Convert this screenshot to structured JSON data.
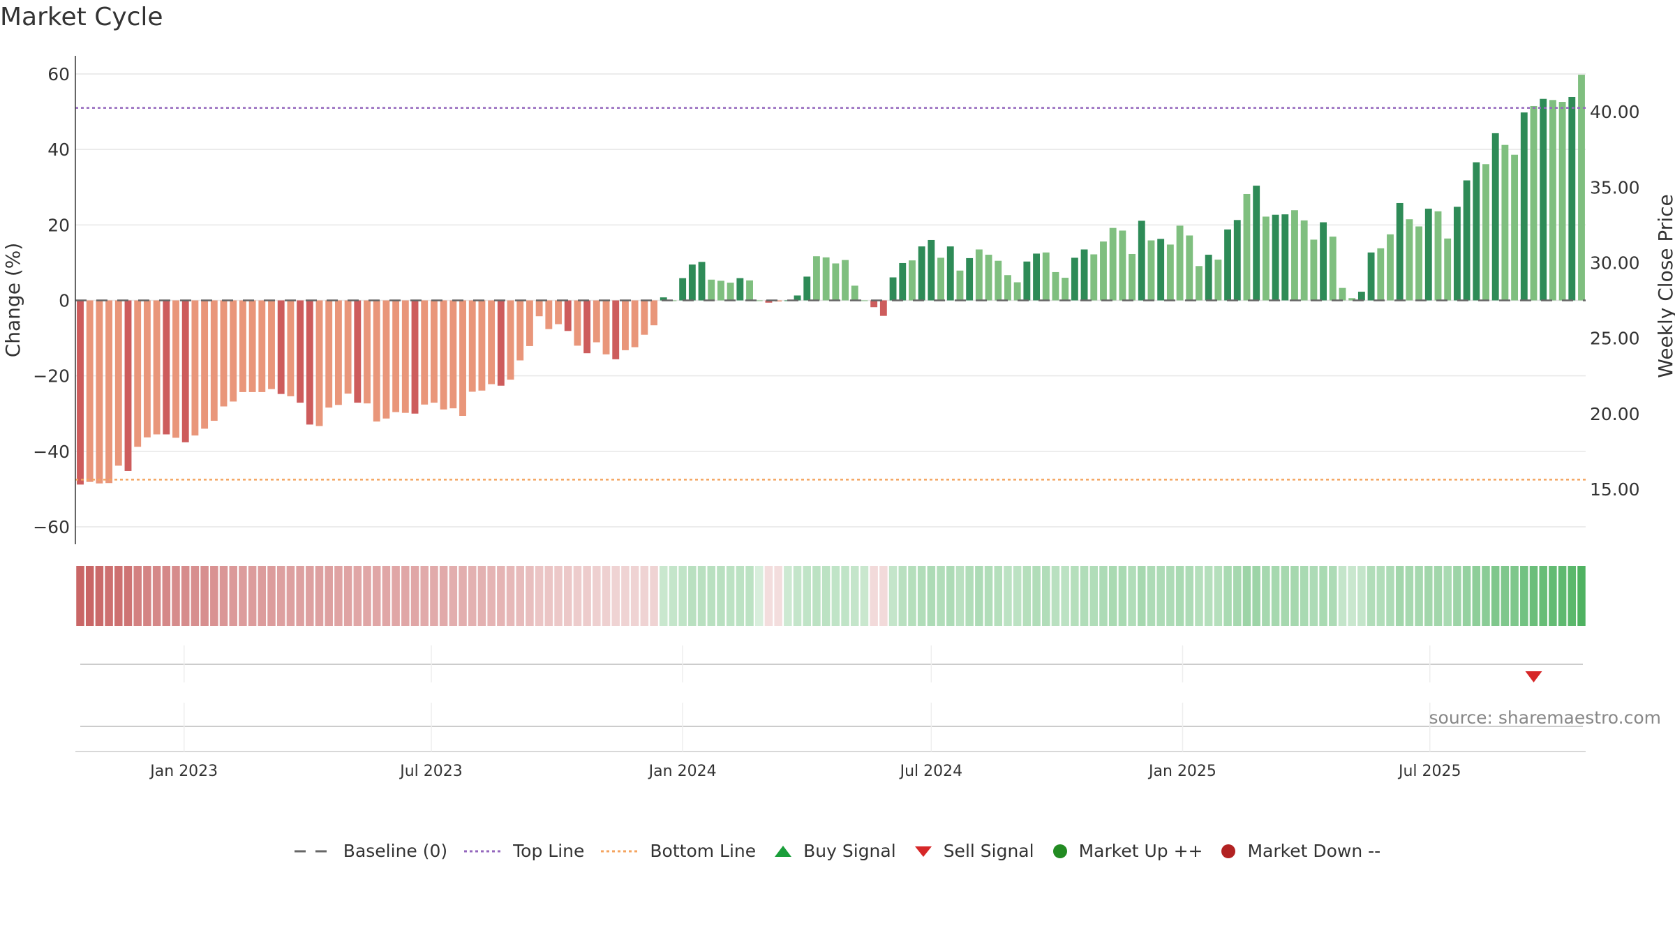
{
  "title": "Market Cycle",
  "source_text": "source: sharemaestro.com",
  "colors": {
    "up_strong": "#2e8b57",
    "up_light": "#7fbf7f",
    "down_strong": "#cd5c5c",
    "down_light": "#e9967a",
    "top_line": "#9467bd",
    "bottom_line": "#f4a460",
    "baseline": "#666666",
    "buy": "#1a9e3a",
    "sell": "#d62728",
    "market_up": "#228b22",
    "market_down": "#b22222"
  },
  "legend": [
    {
      "label": "Baseline (0)",
      "symbol": "dash"
    },
    {
      "label": "Top Line",
      "symbol": "dot-purple"
    },
    {
      "label": "Bottom Line",
      "symbol": "dot-orange"
    },
    {
      "label": "Buy Signal",
      "symbol": "triangle-up"
    },
    {
      "label": "Sell Signal",
      "symbol": "triangle-down"
    },
    {
      "label": "Market Up ++",
      "symbol": "circle-green"
    },
    {
      "label": "Market Down --",
      "symbol": "circle-red"
    }
  ],
  "chart_data": {
    "type": "bar",
    "title": "Market Cycle",
    "ylabel": "Change (%)",
    "y2label": "Weekly Close Price",
    "ylim": [
      -60,
      60
    ],
    "y2lim": [
      12.5,
      42.5
    ],
    "yticks": [
      "60",
      "40",
      "20",
      "0",
      "−20",
      "−40",
      "−60"
    ],
    "y2ticks": [
      "40.00",
      "35.00",
      "30.00",
      "25.00",
      "20.00",
      "15.00"
    ],
    "xticks": [
      "Jan 2023",
      "Jul 2023",
      "Jan 2024",
      "Jul 2024",
      "Jan 2025",
      "Jul 2025"
    ],
    "xtick_dates": [
      "2023-01-01",
      "2023-07-01",
      "2024-01-01",
      "2024-07-01",
      "2025-01-01",
      "2025-07-01"
    ],
    "start_date": "2022-10-17",
    "top_line": 51,
    "bottom_line": -47.5,
    "grid": true,
    "legend_position": "bottom",
    "values": [
      -48.8,
      -48.1,
      -48.5,
      -48.4,
      -43.8,
      -45.2,
      -38.8,
      -36.3,
      -35.5,
      -35.5,
      -36.4,
      -37.6,
      -35.8,
      -34,
      -31.9,
      -28.1,
      -26.8,
      -24.3,
      -24.3,
      -24.3,
      -23.5,
      -24.8,
      -25.4,
      -27.1,
      -32.9,
      -33.3,
      -28.4,
      -27.7,
      -24.7,
      -27.1,
      -27.3,
      -32.1,
      -31.3,
      -29.6,
      -29.8,
      -30,
      -27.6,
      -27.1,
      -28.9,
      -28.6,
      -30.6,
      -24.2,
      -23.9,
      -22.2,
      -22.6,
      -21,
      -15.9,
      -12.1,
      -4.2,
      -7.6,
      -6.3,
      -8.1,
      -12,
      -14,
      -11.1,
      -14.3,
      -15.6,
      -13.2,
      -12.4,
      -9.1,
      -6.6,
      0.8,
      0,
      5.9,
      9.5,
      10.2,
      5.5,
      5.2,
      4.7,
      5.9,
      5.3,
      0,
      -0.6,
      -0.3,
      0,
      1.3,
      6.3,
      11.7,
      11.4,
      9.8,
      10.7,
      3.9,
      0,
      -1.8,
      -4.1,
      6.1,
      9.9,
      10.6,
      14.3,
      16,
      11.3,
      14.3,
      7.9,
      11.2,
      13.5,
      12.1,
      10.5,
      6.7,
      4.8,
      10.3,
      12.4,
      12.7,
      7.5,
      6,
      11.3,
      13.5,
      12.2,
      15.6,
      19.2,
      18.5,
      12.3,
      21.1,
      15.9,
      16.3,
      14.8,
      19.8,
      17.2,
      9.1,
      12.1,
      10.8,
      18.8,
      21.3,
      28.2,
      30.4,
      22.2,
      22.7,
      22.8,
      23.9,
      21.2,
      16.1,
      20.7,
      16.9,
      3.3,
      0.6,
      2.3,
      12.7,
      13.8,
      17.5,
      25.8,
      21.5,
      19.6,
      24.3,
      23.6,
      16.4,
      24.8,
      31.8,
      36.6,
      36.1,
      44.3,
      41.2,
      38.6,
      49.8,
      51.5,
      53.4,
      53.1,
      52.6,
      53.9,
      59.8
    ],
    "strength": [
      0.9,
      0.9,
      0.88,
      0.84,
      0.84,
      0.82,
      0.74,
      0.72,
      0.7,
      0.7,
      0.68,
      0.68,
      0.66,
      0.66,
      0.64,
      0.62,
      0.6,
      0.58,
      0.58,
      0.58,
      0.58,
      0.56,
      0.56,
      0.56,
      0.56,
      0.56,
      0.56,
      0.54,
      0.54,
      0.52,
      0.52,
      0.52,
      0.52,
      0.52,
      0.52,
      0.52,
      0.5,
      0.5,
      0.5,
      0.48,
      0.48,
      0.46,
      0.46,
      0.44,
      0.44,
      0.42,
      0.4,
      0.38,
      0.34,
      0.34,
      0.32,
      0.32,
      0.3,
      0.3,
      0.28,
      0.28,
      0.26,
      0.26,
      0.26,
      0.26,
      0.26,
      0.28,
      0.3,
      0.32,
      0.36,
      0.36,
      0.36,
      0.36,
      0.34,
      0.34,
      0.34,
      0.2,
      0.2,
      0.2,
      0.26,
      0.3,
      0.32,
      0.34,
      0.34,
      0.32,
      0.32,
      0.3,
      0.28,
      0.22,
      0.22,
      0.3,
      0.36,
      0.38,
      0.4,
      0.42,
      0.4,
      0.42,
      0.36,
      0.4,
      0.42,
      0.4,
      0.38,
      0.34,
      0.34,
      0.38,
      0.4,
      0.4,
      0.36,
      0.34,
      0.38,
      0.4,
      0.4,
      0.42,
      0.44,
      0.44,
      0.4,
      0.46,
      0.42,
      0.42,
      0.42,
      0.44,
      0.42,
      0.38,
      0.38,
      0.38,
      0.44,
      0.46,
      0.5,
      0.5,
      0.46,
      0.46,
      0.46,
      0.46,
      0.44,
      0.42,
      0.44,
      0.42,
      0.3,
      0.28,
      0.3,
      0.4,
      0.4,
      0.42,
      0.48,
      0.46,
      0.46,
      0.48,
      0.48,
      0.44,
      0.5,
      0.54,
      0.58,
      0.6,
      0.66,
      0.66,
      0.66,
      0.72,
      0.76,
      0.78,
      0.8,
      0.82,
      0.84,
      0.9
    ],
    "sell_signal_index": 152
  }
}
